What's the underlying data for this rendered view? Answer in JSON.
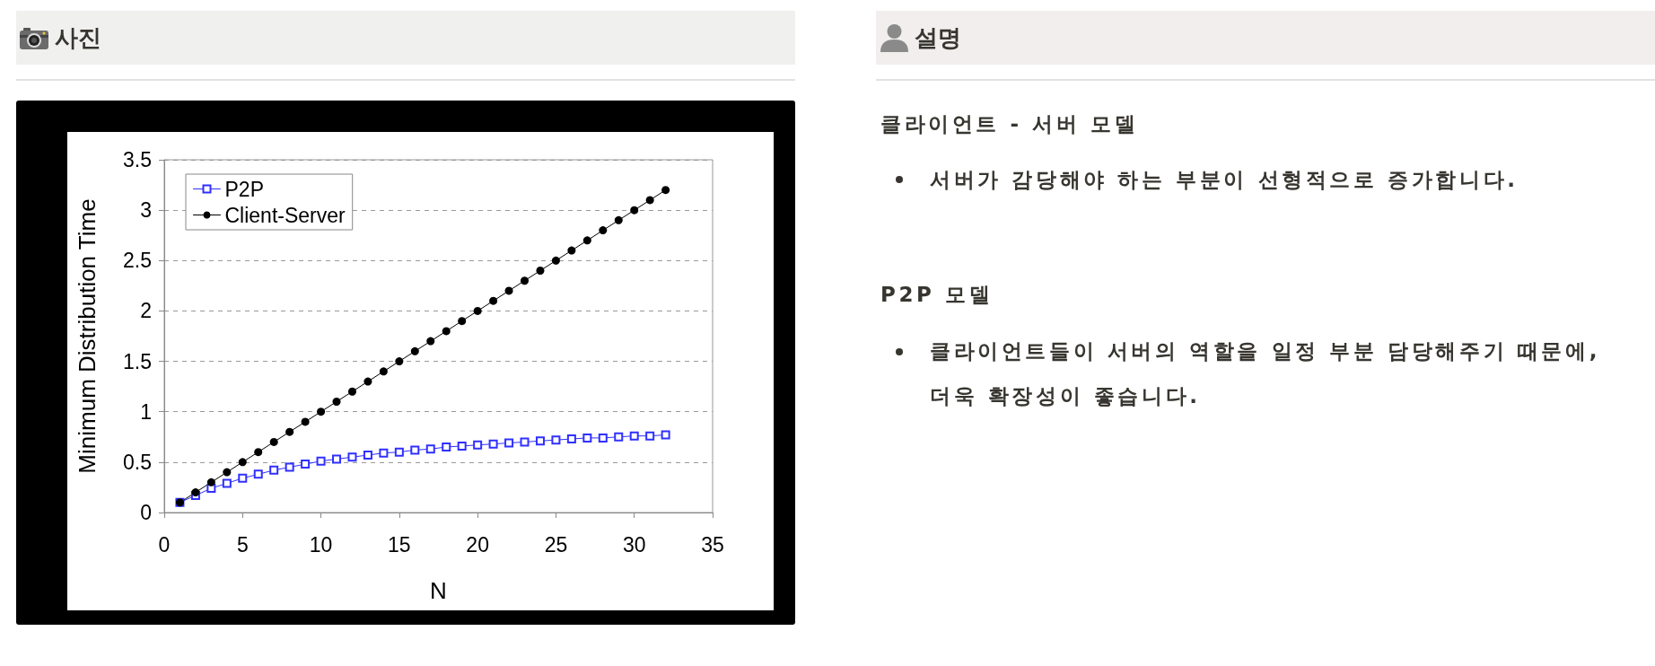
{
  "chart_data": {
    "type": "line",
    "xlabel": "N",
    "ylabel": "Minimum Distribution Time",
    "x": [
      1,
      2,
      3,
      4,
      5,
      6,
      7,
      8,
      9,
      10,
      11,
      12,
      13,
      14,
      15,
      16,
      17,
      18,
      19,
      20,
      21,
      22,
      23,
      24,
      25,
      26,
      27,
      28,
      29,
      30,
      31,
      32
    ],
    "series": [
      {
        "name": "P2P",
        "color": "#3030ff",
        "marker": "square",
        "values": [
          0.1,
          0.17,
          0.24,
          0.29,
          0.34,
          0.38,
          0.42,
          0.45,
          0.48,
          0.51,
          0.53,
          0.55,
          0.57,
          0.59,
          0.6,
          0.62,
          0.63,
          0.65,
          0.66,
          0.67,
          0.68,
          0.69,
          0.7,
          0.71,
          0.72,
          0.73,
          0.74,
          0.74,
          0.75,
          0.76,
          0.76,
          0.77
        ]
      },
      {
        "name": "Client-Server",
        "color": "#000000",
        "marker": "circle",
        "values": [
          0.1,
          0.2,
          0.3,
          0.4,
          0.5,
          0.6,
          0.7,
          0.8,
          0.9,
          1.0,
          1.1,
          1.2,
          1.3,
          1.4,
          1.5,
          1.6,
          1.7,
          1.8,
          1.9,
          2.0,
          2.1,
          2.2,
          2.3,
          2.4,
          2.5,
          2.6,
          2.7,
          2.8,
          2.9,
          3.0,
          3.1,
          3.2
        ]
      }
    ],
    "xlim": [
      0,
      35
    ],
    "xticks": [
      0,
      5,
      10,
      15,
      20,
      25,
      30,
      35
    ],
    "ylim": [
      0,
      3.5
    ],
    "yticks": [
      0,
      0.5,
      1,
      1.5,
      2,
      2.5,
      3,
      3.5
    ],
    "grid": "y",
    "legend": "top left",
    "line_style": "solid",
    "annotations": [
      "사진",
      "설명",
      "클라이언트 - 서버 모델",
      "서버가 감당해야 하는 부분이 선형적으로 증가합니다.",
      "P2P 모델",
      "클라이언트들이 서버의 역할을 일정 부분 담당해주기 때문에, 더욱 확장성이 좋습니다."
    ]
  }
}
